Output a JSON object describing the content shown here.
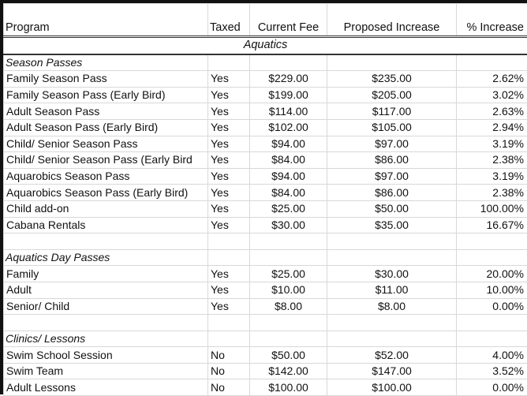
{
  "headers": {
    "program": "Program",
    "taxed": "Taxed",
    "current": "Current Fee",
    "proposed": "Proposed Increase",
    "pct": "% Increase"
  },
  "band": "Aquatics",
  "sections": [
    {
      "title": "Season Passes",
      "rows": [
        [
          "Family Season Pass",
          "Yes",
          "$229.00",
          "$235.00",
          "2.62%"
        ],
        [
          "Family Season Pass (Early Bird)",
          "Yes",
          "$199.00",
          "$205.00",
          "3.02%"
        ],
        [
          "Adult Season Pass",
          "Yes",
          "$114.00",
          "$117.00",
          "2.63%"
        ],
        [
          "Adult Season Pass (Early Bird)",
          "Yes",
          "$102.00",
          "$105.00",
          "2.94%"
        ],
        [
          "Child/ Senior Season Pass",
          "Yes",
          "$94.00",
          "$97.00",
          "3.19%"
        ],
        [
          "Child/ Senior Season Pass (Early Bird",
          "Yes",
          "$84.00",
          "$86.00",
          "2.38%"
        ],
        [
          "Aquarobics Season Pass",
          "Yes",
          "$94.00",
          "$97.00",
          "3.19%"
        ],
        [
          "Aquarobics Season Pass (Early Bird)",
          "Yes",
          "$84.00",
          "$86.00",
          "2.38%"
        ],
        [
          "Child add-on",
          "Yes",
          "$25.00",
          "$50.00",
          "100.00%"
        ],
        [
          "Cabana Rentals",
          "Yes",
          "$30.00",
          "$35.00",
          "16.67%"
        ]
      ]
    },
    {
      "title": "Aquatics Day Passes",
      "rows": [
        [
          "Family",
          "Yes",
          "$25.00",
          "$30.00",
          "20.00%"
        ],
        [
          "Adult",
          "Yes",
          "$10.00",
          "$11.00",
          "10.00%"
        ],
        [
          "Senior/ Child",
          "Yes",
          "$8.00",
          "$8.00",
          "0.00%"
        ]
      ]
    },
    {
      "title": "Clinics/ Lessons",
      "rows": [
        [
          "Swim School Session",
          "No",
          "$50.00",
          "$52.00",
          "4.00%"
        ],
        [
          "Swim Team",
          "No",
          "$142.00",
          "$147.00",
          "3.52%"
        ],
        [
          "Adult Lessons",
          "No",
          "$100.00",
          "$100.00",
          "0.00%"
        ]
      ]
    }
  ]
}
